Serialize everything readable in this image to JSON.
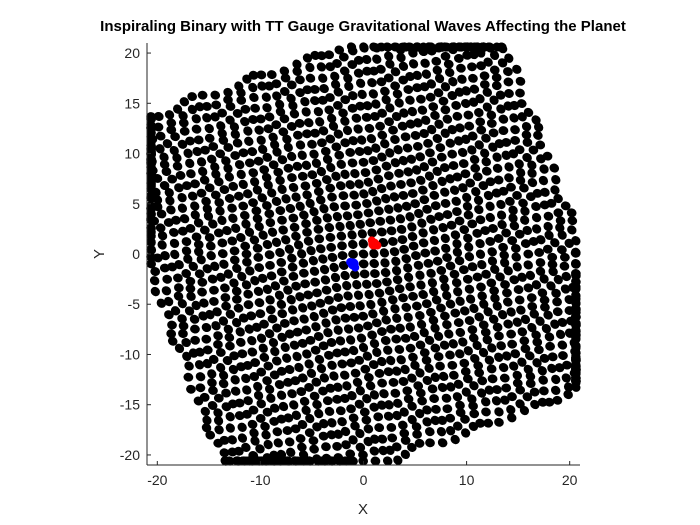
{
  "chart_data": {
    "type": "scatter",
    "title": "Inspiraling Binary with TT Gauge Gravitational Waves Affecting the Planet",
    "xlabel": "X",
    "ylabel": "Y",
    "xlim": [
      -21,
      21
    ],
    "ylim": [
      -21,
      21
    ],
    "xticks": [
      -20,
      -10,
      0,
      10,
      20
    ],
    "yticks": [
      -20,
      -15,
      -10,
      -5,
      0,
      5,
      10,
      15,
      20
    ],
    "grid": false,
    "legend": "none",
    "lattice": {
      "min": -20,
      "max": 20,
      "step": 1,
      "color": "#000000",
      "description_hidden": true
    },
    "series": [
      {
        "marker_color": "#000000",
        "role": "planet-particles"
      },
      {
        "marker_color": "#ff0000",
        "points": [
          [
            1.0,
            1.0
          ]
        ],
        "trail": [
          [
            0.8,
            1.35
          ],
          [
            1.35,
            0.85
          ]
        ]
      },
      {
        "marker_color": "#0000ff",
        "points": [
          [
            -1.0,
            -1.0
          ]
        ],
        "trail": [
          [
            -1.3,
            -0.8
          ],
          [
            -0.8,
            -1.35
          ]
        ]
      }
    ]
  }
}
